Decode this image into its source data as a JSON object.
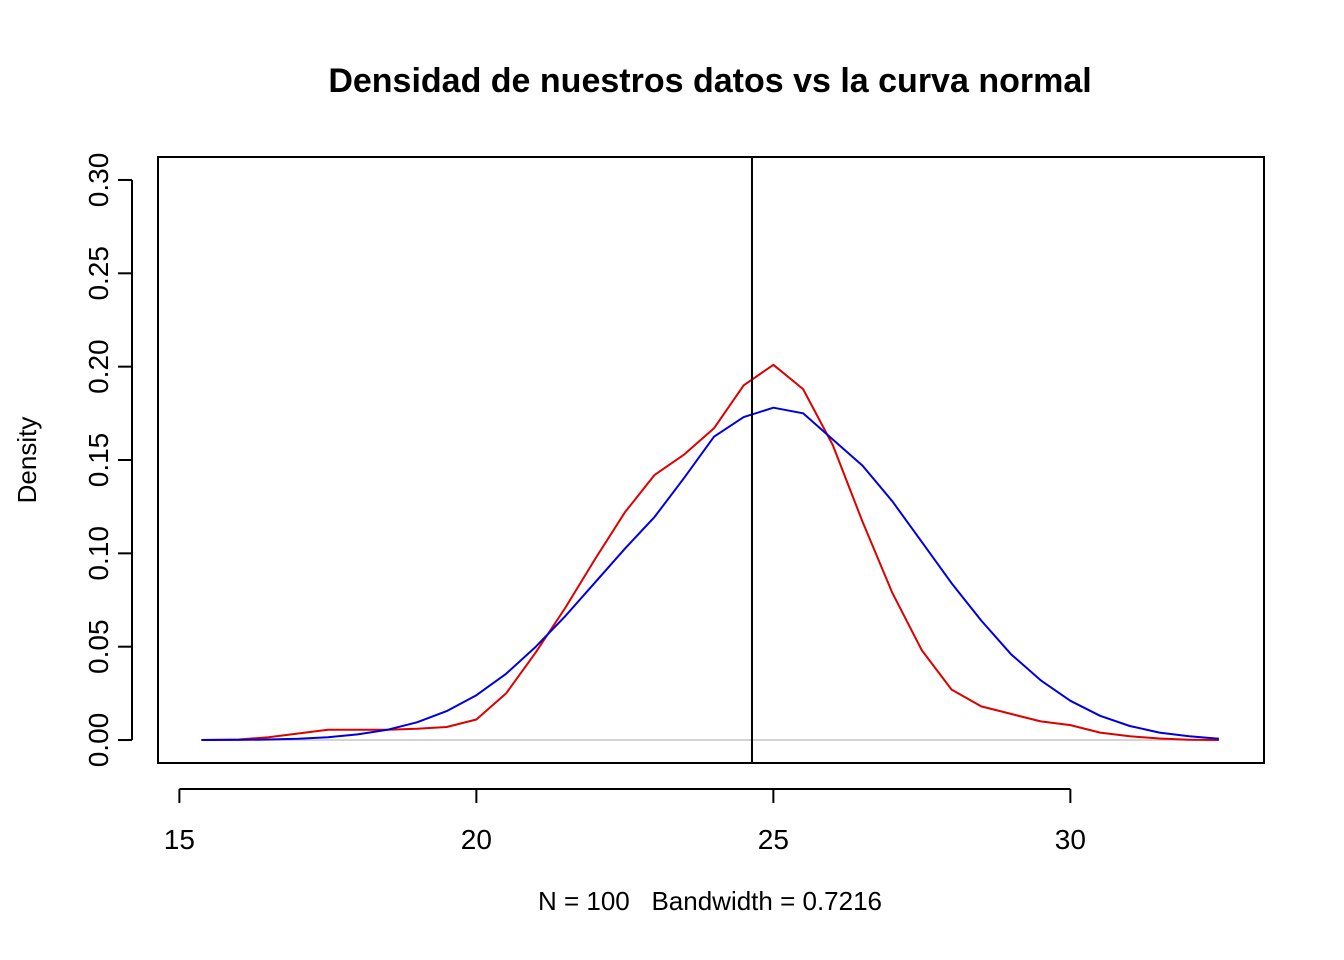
{
  "chart_data": {
    "type": "line",
    "title": "Densidad de nuestros datos vs la curva normal",
    "xlabel": "N = 100   Bandwidth = 0.7216",
    "ylabel": "Density",
    "xlim": [
      14.64,
      33.26
    ],
    "ylim": [
      -0.0123,
      0.3123
    ],
    "x_ticks": [
      15,
      20,
      25,
      30
    ],
    "x_tick_labels": [
      "15",
      "20",
      "25",
      "30"
    ],
    "y_ticks": [
      0,
      0.05,
      0.1,
      0.15,
      0.2,
      0.25,
      0.3
    ],
    "y_tick_labels": [
      "0.00",
      "0.05",
      "0.10",
      "0.15",
      "0.20",
      "0.25",
      "0.30"
    ],
    "grid": false,
    "legend": "none",
    "baseline_y": 0,
    "vline_x": 24.64,
    "colors": {
      "density": "#dd0000",
      "normal": "#0000dd",
      "vline": "#000000",
      "baseline": "#bbbbbb"
    },
    "series": [
      {
        "x": [
          15.37,
          16.0,
          16.5,
          17.0,
          17.5,
          18.0,
          18.5,
          19.0,
          19.5,
          20.0,
          20.5,
          21.0,
          21.5,
          22.0,
          22.5,
          23.0,
          23.5,
          24.0,
          24.5,
          25.0,
          25.5,
          26.0,
          26.5,
          27.0,
          27.5,
          28.0,
          28.5,
          29.0,
          29.5,
          30.0,
          30.5,
          31.0,
          31.5,
          32.0,
          32.5
        ],
        "y": [
          0.0,
          0.0003,
          0.0015,
          0.0035,
          0.0055,
          0.0055,
          0.0055,
          0.006,
          0.007,
          0.011,
          0.025,
          0.047,
          0.071,
          0.097,
          0.122,
          0.142,
          0.153,
          0.167,
          0.19,
          0.201,
          0.188,
          0.158,
          0.117,
          0.079,
          0.048,
          0.027,
          0.018,
          0.014,
          0.01,
          0.008,
          0.004,
          0.002,
          0.0008,
          0.0002,
          0.0
        ]
      },
      {
        "x": [
          15.37,
          16.0,
          16.5,
          17.0,
          17.5,
          18.0,
          18.5,
          19.0,
          19.5,
          20.0,
          20.5,
          21.0,
          21.5,
          22.0,
          22.5,
          23.0,
          23.5,
          24.0,
          24.5,
          25.0,
          25.5,
          26.0,
          26.5,
          27.0,
          27.5,
          28.0,
          28.5,
          29.0,
          29.5,
          30.0,
          30.5,
          31.0,
          31.5,
          32.0,
          32.5
        ],
        "y": [
          0.0,
          0.0001,
          0.0003,
          0.0007,
          0.0015,
          0.003,
          0.0055,
          0.0095,
          0.0155,
          0.024,
          0.0355,
          0.05,
          0.0665,
          0.0845,
          0.1025,
          0.1195,
          0.1405,
          0.1625,
          0.173,
          0.178,
          0.175,
          0.161,
          0.147,
          0.128,
          0.106,
          0.084,
          0.064,
          0.046,
          0.032,
          0.021,
          0.013,
          0.0075,
          0.004,
          0.002,
          0.0007
        ]
      }
    ]
  }
}
